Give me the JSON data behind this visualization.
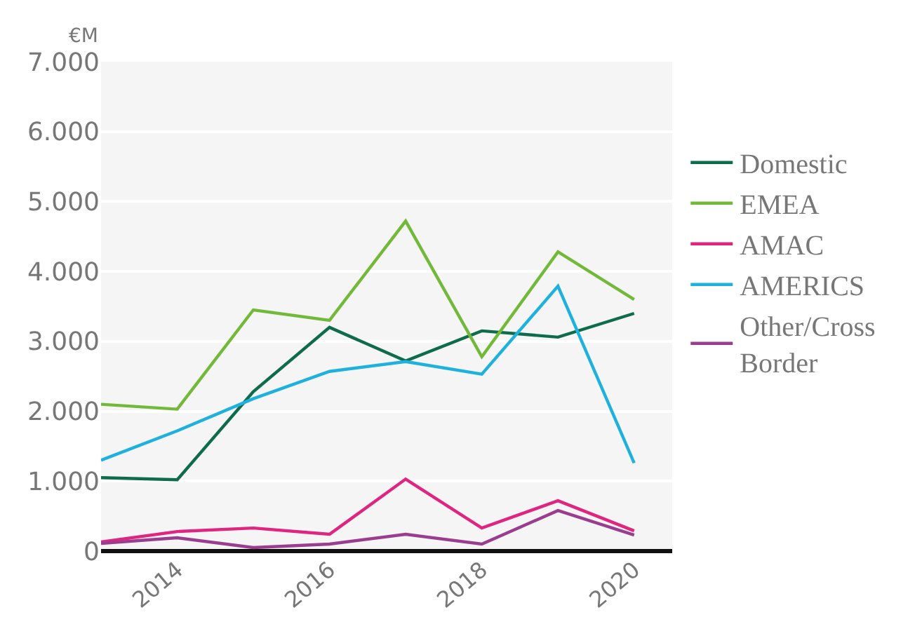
{
  "chart_data": {
    "type": "line",
    "ylabel": "€M",
    "x": [
      2013,
      2014,
      2015,
      2016,
      2017,
      2018,
      2019,
      2020
    ],
    "series": [
      {
        "name": "Domestic",
        "color": "#0e6b4b",
        "values": [
          1050,
          1020,
          2280,
          3200,
          2720,
          3150,
          3060,
          3400
        ]
      },
      {
        "name": "EMEA",
        "color": "#72b93a",
        "values": [
          2100,
          2030,
          3450,
          3300,
          4720,
          2780,
          4280,
          3600
        ]
      },
      {
        "name": "AMAC",
        "color": "#e0247f",
        "values": [
          130,
          280,
          330,
          240,
          1030,
          330,
          720,
          290
        ]
      },
      {
        "name": "AMERICS",
        "color": "#1fb1dd",
        "values": [
          1300,
          1720,
          2180,
          2570,
          2710,
          2530,
          3790,
          1260
        ]
      },
      {
        "name": "Other/Cross Border",
        "color": "#9b3d8f",
        "values": [
          110,
          190,
          50,
          100,
          240,
          100,
          580,
          230
        ]
      }
    ],
    "xlim": [
      2013,
      2020.5
    ],
    "xticks": [
      2014,
      2016,
      2018,
      2020
    ],
    "ylim": [
      0,
      7000
    ],
    "yticks": [
      {
        "value": 0,
        "label": "0"
      },
      {
        "value": 1000,
        "label": "1.000"
      },
      {
        "value": 2000,
        "label": "2.000"
      },
      {
        "value": 3000,
        "label": "3.000"
      },
      {
        "value": 4000,
        "label": "4.000"
      },
      {
        "value": 5000,
        "label": "5.000"
      },
      {
        "value": 6000,
        "label": "6.000"
      },
      {
        "value": 7000,
        "label": "7.000"
      }
    ],
    "grid": "y",
    "legend": "right",
    "marker": "none",
    "line_style": "solid"
  }
}
